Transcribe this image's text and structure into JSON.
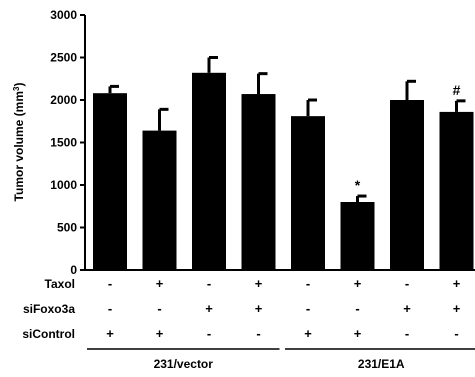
{
  "chart_data": {
    "type": "bar",
    "ylabel": "Tumor volume (mm",
    "ylabel_sup": "3",
    "ylabel_end": ")",
    "ylim": [
      0,
      3000
    ],
    "yticks": [
      "0",
      "500",
      "1000",
      "1500",
      "2000",
      "2500",
      "3000"
    ],
    "grid": false,
    "legend": "none",
    "bar_color": "#000000",
    "bars": [
      {
        "value": 2080,
        "error": 80
      },
      {
        "value": 1640,
        "error": 250
      },
      {
        "value": 2320,
        "error": 180
      },
      {
        "value": 2070,
        "error": 240
      },
      {
        "value": 1810,
        "error": 190
      },
      {
        "value": 800,
        "error": 70,
        "annotation": "*"
      },
      {
        "value": 2000,
        "error": 220
      },
      {
        "value": 1860,
        "error": 130,
        "annotation": "#"
      }
    ],
    "conditions": [
      {
        "label": "Taxol",
        "signs": [
          "-",
          "+",
          "-",
          "+",
          "-",
          "+",
          "-",
          "+"
        ]
      },
      {
        "label": "siFoxo3a",
        "signs": [
          "-",
          "-",
          "+",
          "+",
          "-",
          "-",
          "+",
          "+"
        ]
      },
      {
        "label": "siControl",
        "signs": [
          "+",
          "+",
          "-",
          "-",
          "+",
          "+",
          "-",
          "-"
        ]
      }
    ],
    "groups": [
      "231/vector",
      "231/E1A"
    ]
  }
}
